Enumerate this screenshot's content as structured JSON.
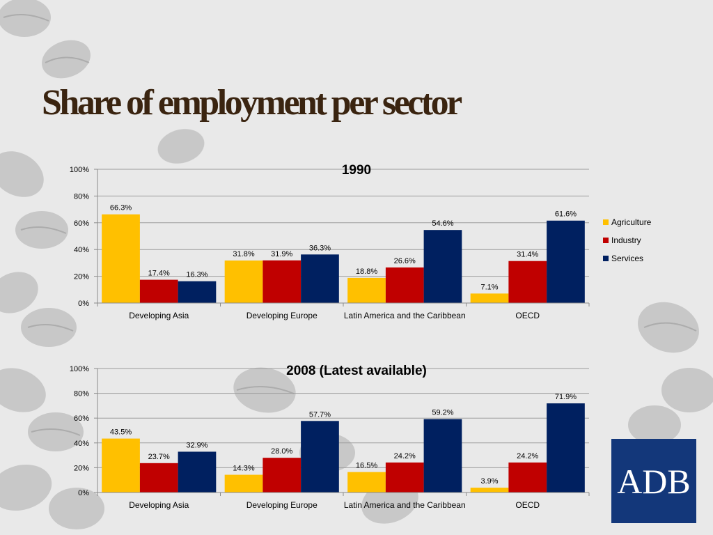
{
  "slide": {
    "title": "Share of employment per sector"
  },
  "logo": {
    "text": "ADB"
  },
  "colors": {
    "agriculture": "#ffc000",
    "industry": "#c00000",
    "services": "#002060"
  },
  "chart_data": [
    {
      "type": "bar",
      "title": "1990",
      "categories": [
        "Developing Asia",
        "Developing Europe",
        "Latin America and the Caribbean",
        "OECD"
      ],
      "series": [
        {
          "name": "Agriculture",
          "values": [
            66.3,
            31.8,
            18.8,
            7.1
          ]
        },
        {
          "name": "Industry",
          "values": [
            17.4,
            31.9,
            26.6,
            31.4
          ]
        },
        {
          "name": "Services",
          "values": [
            16.3,
            36.3,
            54.6,
            61.6
          ]
        }
      ],
      "ylim": [
        0,
        100
      ],
      "yticks": [
        "0%",
        "20%",
        "40%",
        "60%",
        "80%",
        "100%"
      ],
      "grid": true,
      "legend": "right"
    },
    {
      "type": "bar",
      "title": "2008 (Latest available)",
      "categories": [
        "Developing Asia",
        "Developing Europe",
        "Latin America and the Caribbean",
        "OECD"
      ],
      "series": [
        {
          "name": "Agriculture",
          "values": [
            43.5,
            14.3,
            16.5,
            3.9
          ]
        },
        {
          "name": "Industry",
          "values": [
            23.7,
            28.0,
            24.2,
            24.2
          ]
        },
        {
          "name": "Services",
          "values": [
            32.9,
            57.7,
            59.2,
            71.9
          ]
        }
      ],
      "ylim": [
        0,
        100
      ],
      "yticks": [
        "0%",
        "20%",
        "40%",
        "60%",
        "80%",
        "100%"
      ],
      "grid": true,
      "legend": "none"
    }
  ]
}
